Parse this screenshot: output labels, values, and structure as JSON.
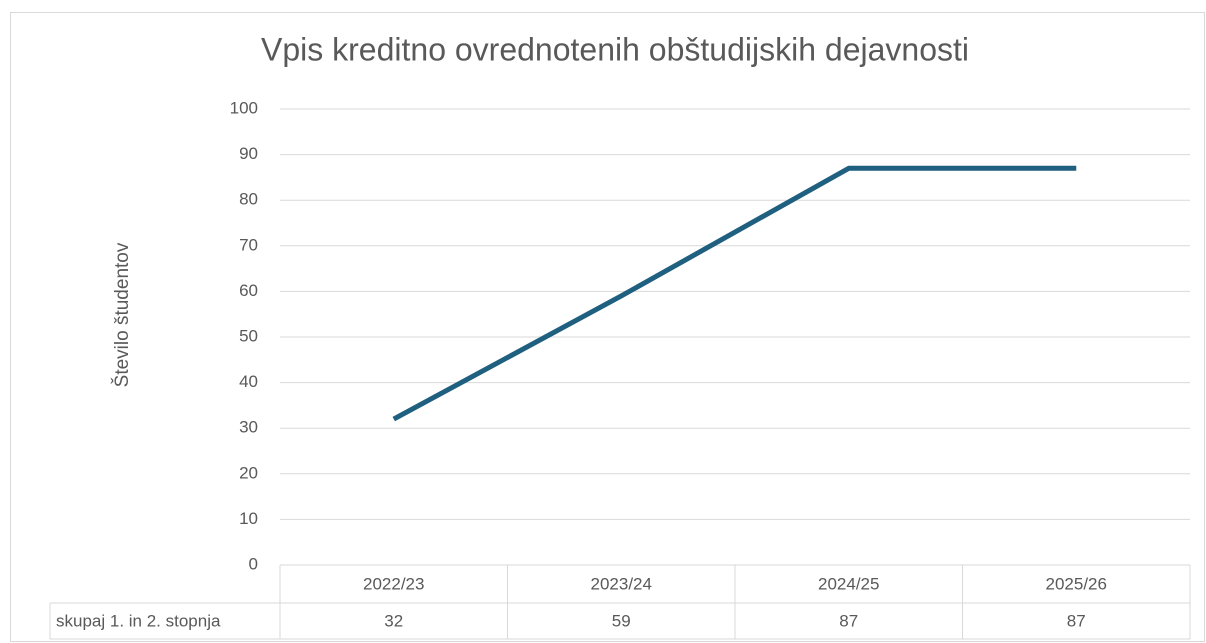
{
  "chart_data": {
    "type": "line",
    "title": "Vpis kreditno ovrednotenih obštudijskih dejavnosti",
    "y_label": "Število študentov",
    "categories": [
      "2022/23",
      "2023/24",
      "2024/25",
      "2025/26"
    ],
    "series": [
      {
        "name": "skupaj 1. in 2. stopnja",
        "color": "#1f5f7f",
        "values": [
          32,
          59,
          87,
          87
        ]
      }
    ],
    "ylim": [
      0,
      100
    ],
    "yticks": [
      0,
      10,
      20,
      30,
      40,
      50,
      60,
      70,
      80,
      90,
      100
    ],
    "grid": true,
    "data_table": true
  }
}
